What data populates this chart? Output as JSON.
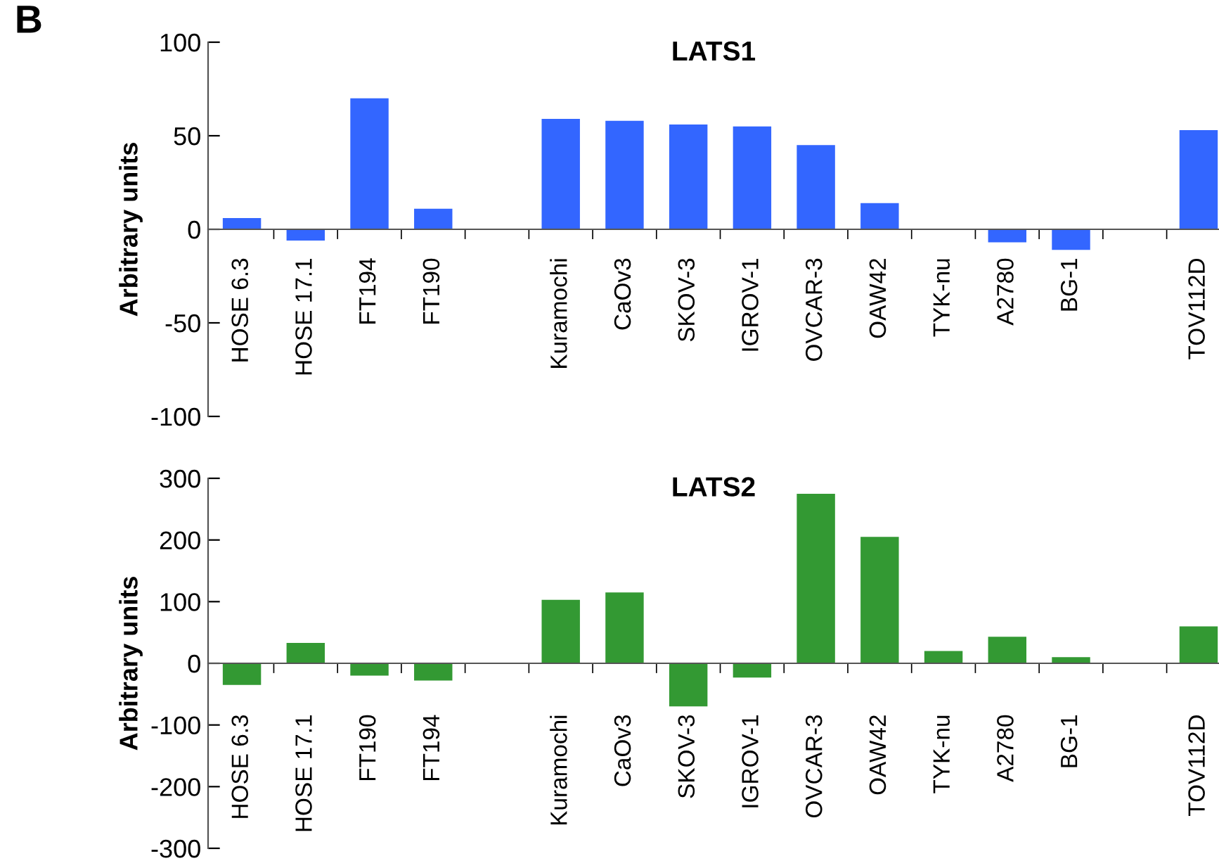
{
  "chart_data": [
    {
      "type": "bar",
      "title": "LATS1",
      "ylabel": "Arbitrary units",
      "annotations": [
        "B"
      ],
      "categories": [
        "HOSE 6.3",
        "HOSE 17.1",
        "FT194",
        "FT190",
        null,
        "Kuramochi",
        "CaOv3",
        "SKOV-3",
        "IGROV-1",
        "OVCAR-3",
        "OAW42",
        "TYK-nu",
        "A2780",
        "BG-1",
        null,
        "TOV112D"
      ],
      "series": [
        {
          "color": "#3366ff",
          "values": [
            6,
            -6,
            70,
            11,
            null,
            59,
            58,
            56,
            55,
            45,
            14,
            null,
            -7,
            -11,
            null,
            53
          ]
        }
      ],
      "ylim": [
        -100,
        100
      ],
      "yticks": [
        -100,
        -50,
        0,
        50,
        100
      ],
      "grid": false,
      "legend": false
    },
    {
      "type": "bar",
      "title": "LATS2",
      "ylabel": "Arbitrary units",
      "categories": [
        "HOSE 6.3",
        "HOSE 17.1",
        "FT190",
        "FT194",
        null,
        "Kuramochi",
        "CaOv3",
        "SKOV-3",
        "IGROV-1",
        "OVCAR-3",
        "OAW42",
        "TYK-nu",
        "A2780",
        "BG-1",
        null,
        "TOV112D"
      ],
      "series": [
        {
          "color": "#339933",
          "values": [
            -35,
            33,
            -20,
            -28,
            null,
            103,
            115,
            -70,
            -23,
            275,
            205,
            20,
            43,
            10,
            null,
            60
          ]
        }
      ],
      "ylim": [
        -300,
        300
      ],
      "yticks": [
        -300,
        -200,
        -100,
        0,
        100,
        200,
        300
      ],
      "grid": false,
      "legend": false
    }
  ]
}
